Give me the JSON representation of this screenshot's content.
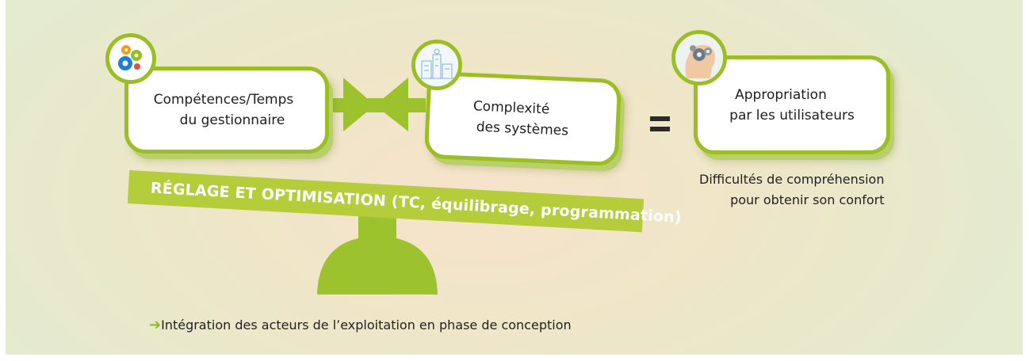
{
  "cards": {
    "competences": {
      "line1": "Compétences/Temps",
      "line2": "du gestionnaire"
    },
    "complexite": {
      "line1": "Complexité",
      "line2": "des systèmes"
    },
    "appropriation": {
      "line1": "Appropriation",
      "line2": "par les utilisateurs"
    }
  },
  "icons": [
    "gears-icon",
    "building-systems-icon",
    "head-gears-icon"
  ],
  "beam_label": "RÉGLAGE ET OPTIMISATION (TC, équilibrage, programmation)",
  "equals_sign": "=",
  "difficulty_note": {
    "line1": "Difficultés de compréhension",
    "line2": "pour obtenir son confort"
  },
  "footer": {
    "arrow": "➔",
    "text": "Intégration des acteurs de l’exploitation en phase de conception"
  },
  "colors": {
    "accent_green": "#9bbe24",
    "beam_green": "#b5cd3a",
    "arrow_green": "#8bbd1e",
    "text": "#222222"
  }
}
